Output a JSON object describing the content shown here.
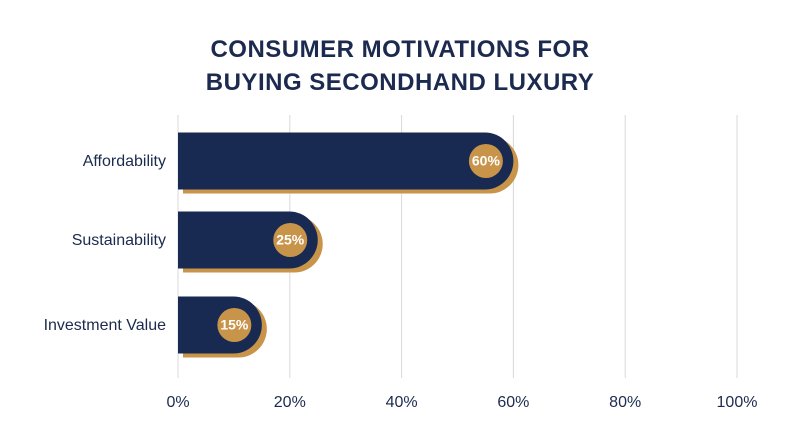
{
  "chart_data": {
    "type": "bar",
    "orientation": "horizontal",
    "title_lines": [
      "CONSUMER MOTIVATIONS FOR",
      "BUYING SECONDHAND LUXURY"
    ],
    "categories": [
      "Affordability",
      "Sustainability",
      "Investment Value"
    ],
    "values": [
      60,
      25,
      15
    ],
    "value_labels": [
      "60%",
      "25%",
      "15%"
    ],
    "xlim": [
      0,
      100
    ],
    "xticks": [
      0,
      20,
      40,
      60,
      80,
      100
    ],
    "xtick_labels": [
      "0%",
      "20%",
      "40%",
      "60%",
      "80%",
      "100%"
    ],
    "xlabel": "",
    "ylabel": "",
    "grid": "vertical",
    "legend": "none",
    "colors": {
      "bar": "#182a52",
      "bar_shadow": "#c8944a",
      "badge": "#c8944a",
      "badge_text": "#ffffff",
      "text": "#1b2a4e",
      "grid": "#d9d9d9"
    }
  }
}
